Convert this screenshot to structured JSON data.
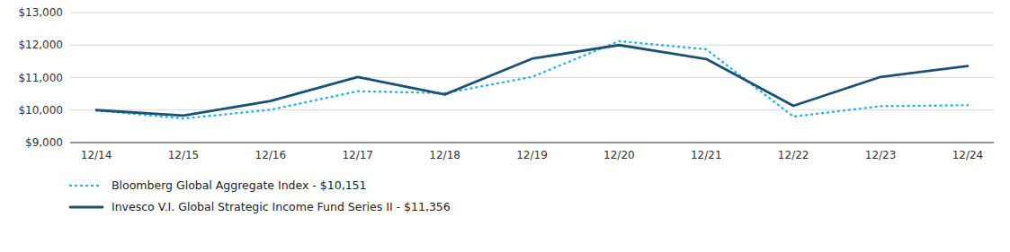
{
  "chart_data": {
    "type": "line",
    "categories": [
      "12/14",
      "12/15",
      "12/16",
      "12/17",
      "12/18",
      "12/19",
      "12/20",
      "12/21",
      "12/22",
      "12/23",
      "12/24"
    ],
    "series": [
      {
        "name": "Bloomberg Global Aggregate Index - $10,151",
        "color": "#29b5e8",
        "line_style": "dotted",
        "values": [
          9990,
          9740,
          10010,
          10580,
          10520,
          11020,
          12120,
          11870,
          9800,
          10120,
          10151
        ]
      },
      {
        "name": "Invesco V.I. Global Strategic Income Fund Series II - $11,356",
        "color": "#1a5276",
        "line_style": "solid",
        "values": [
          10000,
          9830,
          10280,
          11020,
          10480,
          11580,
          12000,
          11570,
          10130,
          11020,
          11356
        ]
      }
    ],
    "ylim": [
      9000,
      13000
    ],
    "yticks": [
      {
        "value": 9000,
        "label": "$9,000"
      },
      {
        "value": 10000,
        "label": "$10,000"
      },
      {
        "value": 11000,
        "label": "$11,000"
      },
      {
        "value": 12000,
        "label": "$12,000"
      },
      {
        "value": 13000,
        "label": "$13,000"
      }
    ],
    "grid": true,
    "legend": "bottom"
  }
}
